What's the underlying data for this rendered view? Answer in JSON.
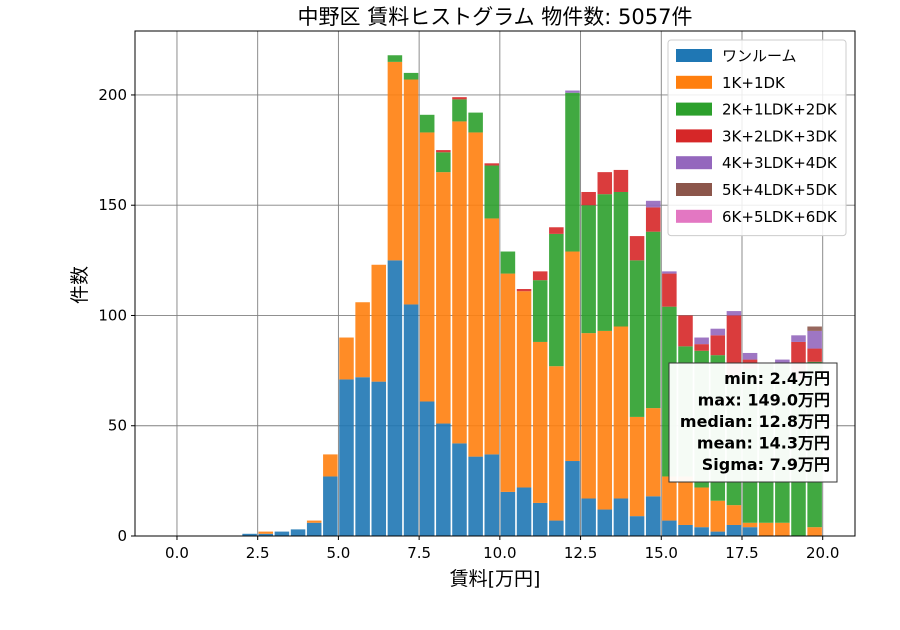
{
  "chart_data": {
    "type": "bar",
    "stacked": true,
    "title": "中野区 賃料ヒストグラム 物件数: 5057件",
    "xlabel": "賃料[万円]",
    "ylabel": "件数",
    "xlim": [
      -1.3,
      21.0
    ],
    "ylim": [
      0,
      229
    ],
    "grid": true,
    "legend_position": "top-right",
    "bin_width": 0.5,
    "x": [
      0,
      0.5,
      1,
      1.5,
      2,
      2.5,
      3,
      3.5,
      4,
      4.5,
      5,
      5.5,
      6,
      6.5,
      7,
      7.5,
      8,
      8.5,
      9,
      9.5,
      10,
      10.5,
      11,
      11.5,
      12,
      12.5,
      13,
      13.5,
      14,
      14.5,
      15,
      15.5,
      16,
      16.5,
      17,
      17.5,
      18,
      18.5,
      19,
      19.5
    ],
    "x_ticks": [
      "0.0",
      "2.5",
      "5.0",
      "7.5",
      "10.0",
      "12.5",
      "15.0",
      "17.5",
      "20.0"
    ],
    "y_ticks": [
      "0",
      "50",
      "100",
      "150",
      "200"
    ],
    "series": [
      {
        "name": "ワンルーム",
        "color": "#1f77b4",
        "values": [
          0,
          0,
          0,
          0,
          1,
          1,
          2,
          3,
          6,
          27,
          71,
          72,
          70,
          125,
          105,
          61,
          51,
          42,
          36,
          37,
          20,
          22,
          15,
          7,
          34,
          17,
          12,
          17,
          9,
          18,
          7,
          5,
          4,
          2,
          5,
          4,
          0,
          0,
          0,
          0
        ]
      },
      {
        "name": "1K+1DK",
        "color": "#ff7f0e",
        "values": [
          0,
          0,
          0,
          0,
          0,
          1,
          0,
          0,
          1,
          10,
          19,
          34,
          53,
          90,
          102,
          122,
          114,
          146,
          147,
          107,
          99,
          89,
          73,
          70,
          95,
          75,
          81,
          78,
          45,
          40,
          20,
          22,
          18,
          14,
          9,
          2,
          6,
          6,
          0,
          4
        ]
      },
      {
        "name": "2K+1LDK+2DK",
        "color": "#2ca02c",
        "values": [
          0,
          0,
          0,
          0,
          0,
          0,
          0,
          0,
          0,
          0,
          0,
          0,
          0,
          3,
          3,
          8,
          9,
          10,
          9,
          24,
          10,
          0,
          28,
          60,
          72,
          58,
          62,
          61,
          71,
          80,
          77,
          59,
          62,
          66,
          57,
          70,
          72,
          72,
          71,
          75
        ]
      },
      {
        "name": "3K+2LDK+3DK",
        "color": "#d62728",
        "values": [
          0,
          0,
          0,
          0,
          0,
          0,
          0,
          0,
          0,
          0,
          0,
          0,
          0,
          0,
          0,
          0,
          1,
          1,
          0,
          1,
          0,
          1,
          4,
          3,
          0,
          6,
          10,
          10,
          11,
          11,
          15,
          14,
          3,
          9,
          29,
          4,
          0,
          0,
          17,
          6
        ]
      },
      {
        "name": "4K+3LDK+4DK",
        "color": "#9467bd",
        "values": [
          0,
          0,
          0,
          0,
          0,
          0,
          0,
          0,
          0,
          0,
          0,
          0,
          0,
          0,
          0,
          0,
          0,
          0,
          0,
          0,
          0,
          0,
          0,
          0,
          1,
          0,
          0,
          0,
          0,
          3,
          1,
          0,
          3,
          3,
          2,
          3,
          0,
          2,
          3,
          8
        ]
      },
      {
        "name": "5K+4LDK+5DK",
        "color": "#8c564b",
        "values": [
          0,
          0,
          0,
          0,
          0,
          0,
          0,
          0,
          0,
          0,
          0,
          0,
          0,
          0,
          0,
          0,
          0,
          0,
          0,
          0,
          0,
          0,
          0,
          0,
          0,
          0,
          0,
          0,
          0,
          0,
          0,
          0,
          0,
          0,
          0,
          0,
          0,
          0,
          0,
          2
        ]
      },
      {
        "name": "6K+5LDK+6DK",
        "color": "#e377c2",
        "values": [
          0,
          0,
          0,
          0,
          0,
          0,
          0,
          0,
          0,
          0,
          0,
          0,
          0,
          0,
          0,
          0,
          0,
          0,
          0,
          0,
          0,
          0,
          0,
          0,
          0,
          0,
          0,
          0,
          0,
          0,
          0,
          0,
          0,
          0,
          0,
          0,
          0,
          0,
          0,
          0
        ]
      }
    ],
    "stats_box": [
      "min: 2.4万円",
      "max: 149.0万円",
      "median: 12.8万円",
      "mean: 14.3万円",
      "Sigma: 7.9万円"
    ]
  }
}
